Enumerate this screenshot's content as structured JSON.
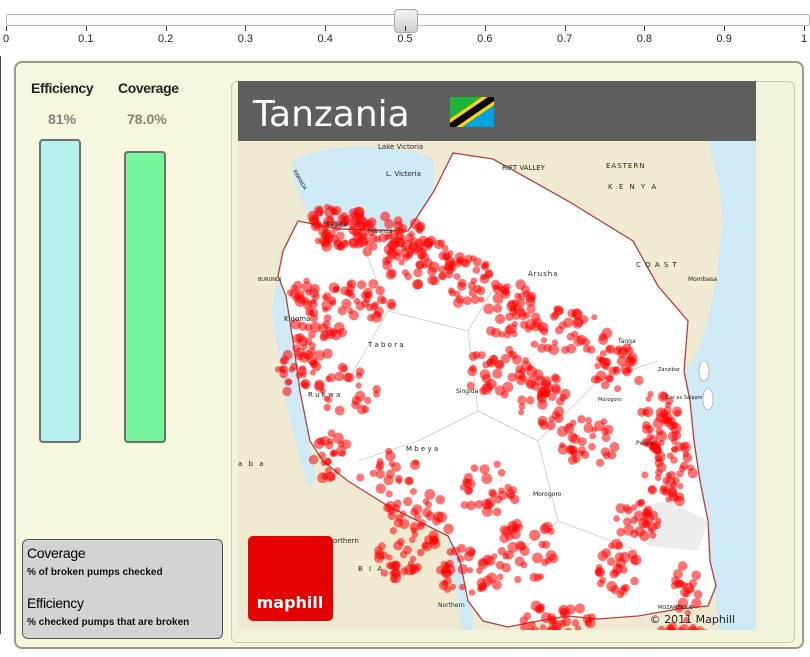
{
  "slider": {
    "value": 0.5,
    "min": 0,
    "max": 1,
    "tick_labels": [
      "0",
      "0.1",
      "0.2",
      "0.3",
      "0.4",
      "0.5",
      "0.6",
      "0.7",
      "0.8",
      "0.9",
      "1"
    ]
  },
  "metrics": {
    "efficiency": {
      "title": "Efficiency",
      "value_text": "81%",
      "fill": 0.81,
      "color": "#b4f0ec"
    },
    "coverage": {
      "title": "Coverage",
      "value_text": "78.0%",
      "fill": 0.78,
      "color": "#76f59a"
    }
  },
  "legend": {
    "coverage_term": "Coverage",
    "coverage_def": "% of broken pumps checked",
    "efficiency_term": "Efficiency",
    "efficiency_def": "% checked pumps that are broken"
  },
  "map": {
    "title": "Tanzania",
    "logo_text": "maphill",
    "copyright": "© 2011 Maphill",
    "labels": {
      "lake_victoria": "Lake Victoria",
      "l_victoria": "L. Victoria",
      "rift_valley": "RIFT VALLEY",
      "eastern": "EASTERN",
      "kenya": "K E N Y A",
      "coast": "C O A S T",
      "mombasa": "Mombasa",
      "rwanda": "RWANDA",
      "burundi": "BURUNDI",
      "kigoma": "Kigoma",
      "kagera": "Kagera",
      "mwanza": "Mwanza",
      "arusha": "Arusha",
      "tabora": "T a b o r a",
      "tanga": "Tanga",
      "rukwa": "R u k w a",
      "singida": "Singida",
      "zanzibar": "Zanzibar",
      "dar_es_salaam": "Dar es Salaam",
      "mbeya": "M b e y a",
      "pwani": "Pwani",
      "morogoro": "Morogoro",
      "northern_zambia": "orthern",
      "zambia_z": "a b a",
      "malawi": "B I A",
      "northern": "Northern",
      "mozambique": "MOZAMBIQUE"
    },
    "colors": {
      "land": "#ffffff",
      "neighbor": "#f1ead2",
      "water": "#cfe9f5",
      "title_bar": "#5e5e5e",
      "pump_dot": "#ff0000",
      "logo": "#e20000"
    },
    "flag_icon": "tanzania-flag-icon"
  }
}
